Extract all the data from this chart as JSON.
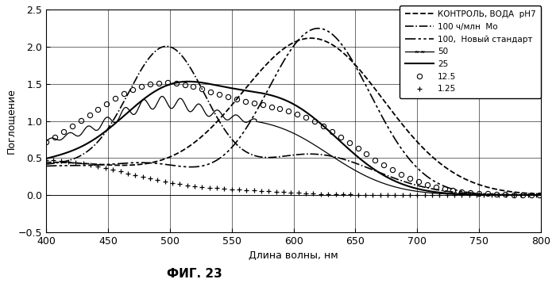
{
  "xlabel": "Длина волны, нм",
  "ylabel": "Поглощение",
  "title": "ФИГ. 23",
  "xlim": [
    400,
    800
  ],
  "ylim": [
    -0.5,
    2.5
  ],
  "xticks": [
    400,
    450,
    500,
    550,
    600,
    650,
    700,
    750,
    800
  ],
  "yticks": [
    -0.5,
    0.0,
    0.5,
    1.0,
    1.5,
    2.0,
    2.5
  ],
  "legend_labels": [
    "КОНТРОЛЬ, ВОДА  pH7",
    "100 ч/млн  Мо",
    "100,  Новый стандарт",
    "50",
    "25",
    "12.5",
    "1.25"
  ]
}
